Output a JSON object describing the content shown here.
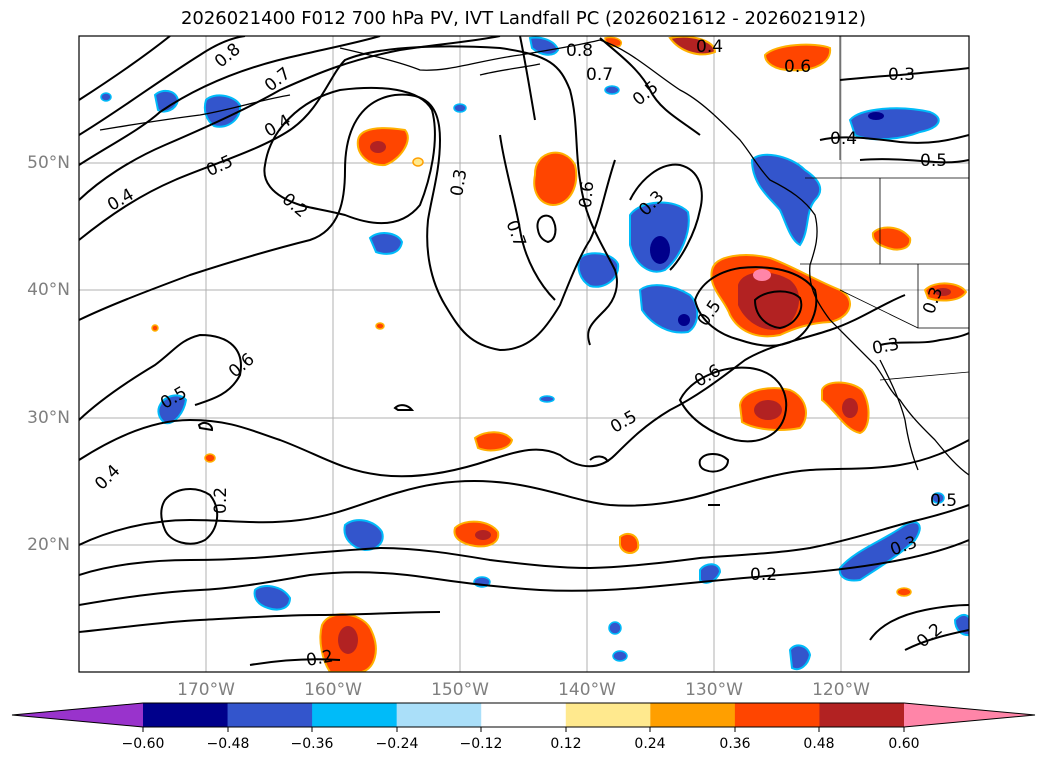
{
  "title": "2026021400 F012 700 hPa PV, IVT Landfall PC (2026021612 - 2026021912)",
  "map": {
    "lat_labels": [
      "50°N",
      "40°N",
      "30°N",
      "20°N"
    ],
    "lon_labels": [
      "170°W",
      "160°W",
      "150°W",
      "140°W",
      "130°W",
      "120°W"
    ],
    "contour_labels": [
      "0.8",
      "0.7",
      "0.4",
      "0.5",
      "0.4",
      "0.2",
      "0.3",
      "0.7",
      "0.6",
      "0.3",
      "0.8",
      "0.7",
      "0.5",
      "0.4",
      "0.6",
      "0.3",
      "0.4",
      "0.5",
      "0.5",
      "0.6",
      "0.6",
      "0.5",
      "0.5",
      "0.4",
      "0.2",
      "0.2",
      "0.3",
      "0.2",
      "0.3",
      "0.5",
      "0.2",
      "0.3"
    ]
  },
  "colorbar": {
    "ticks": [
      "−0.60",
      "−0.48",
      "−0.36",
      "−0.24",
      "−0.12",
      "0.12",
      "0.24",
      "0.36",
      "0.48",
      "0.60"
    ],
    "colors": [
      "#9933cc",
      "#00008b",
      "#3355cc",
      "#00bbf9",
      "#aadff9",
      "#ffffff",
      "#ffe98e",
      "#ff9f00",
      "#ff4500",
      "#b22222",
      "#ff85a8"
    ]
  }
}
